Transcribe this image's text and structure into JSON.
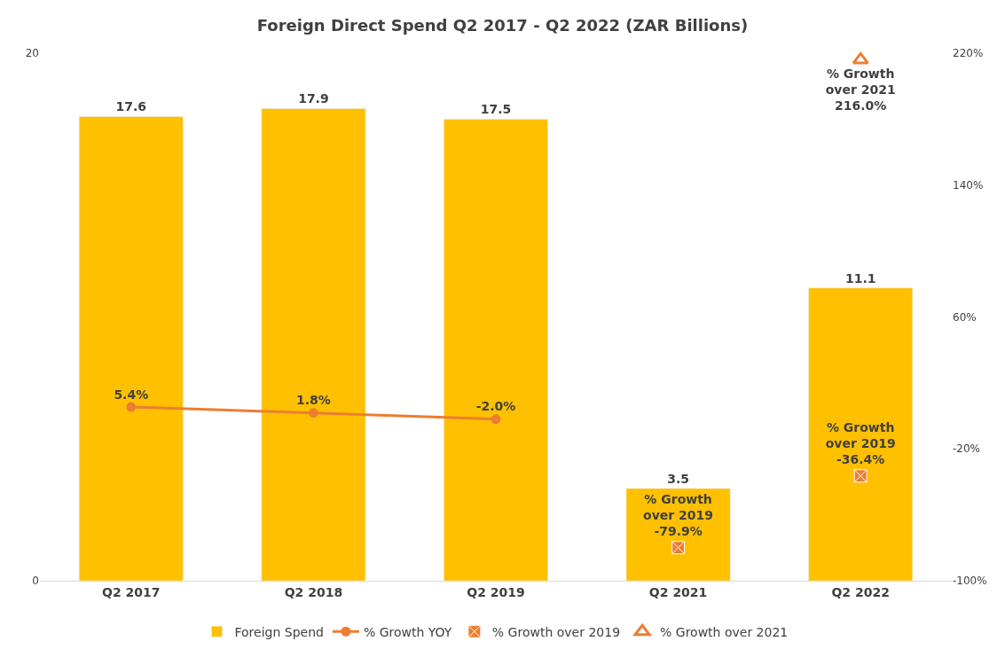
{
  "chart_data": {
    "type": "bar",
    "title": "Foreign Direct Spend Q2 2017 - Q2 2022 (ZAR Billions)",
    "categories": [
      "Q2 2017",
      "Q2 2018",
      "Q2 2019",
      "Q2 2021",
      "Q2 2022"
    ],
    "series": [
      {
        "name": "Foreign Spend",
        "color": "#ffc000",
        "values": [
          17.6,
          17.9,
          17.5,
          3.5,
          11.1
        ],
        "value_labels": [
          "17.6",
          "17.9",
          "17.5",
          "3.5",
          "11.1"
        ]
      },
      {
        "name": "% Growth YOY",
        "type": "line",
        "axis": "y2",
        "marker": "circle",
        "line_style": "solid",
        "color": "#ed7d31",
        "values": [
          5.4,
          1.8,
          -2.0,
          null,
          null
        ],
        "value_labels": [
          "5.4%",
          "1.8%",
          "-2.0%",
          null,
          null
        ]
      },
      {
        "name": "% Growth over 2019",
        "type": "scatter",
        "axis": "y2",
        "marker": "cross",
        "color": "#ed7d31",
        "values": [
          null,
          null,
          null,
          -79.9,
          -36.4
        ],
        "value_labels": [
          null,
          null,
          null,
          "% Growth\nover 2019\n-79.9%",
          "% Growth\nover 2019\n-36.4%"
        ]
      },
      {
        "name": "% Growth over 2021",
        "type": "scatter",
        "axis": "y2",
        "marker": "triangle",
        "color": "#ed7d31",
        "values": [
          null,
          null,
          null,
          null,
          216.0
        ],
        "value_labels": [
          null,
          null,
          null,
          null,
          "% Growth\nover 2021\n216.0%"
        ]
      }
    ],
    "ylim": [
      0,
      20
    ],
    "yticks": [
      0,
      20
    ],
    "y2lim": [
      -100,
      220
    ],
    "y2ticks": [
      {
        "value": -100,
        "label": "-100%"
      },
      {
        "value": -20,
        "label": "-20%"
      },
      {
        "value": 60,
        "label": "60%"
      },
      {
        "value": 140,
        "label": "140%"
      },
      {
        "value": 220,
        "label": "220%"
      }
    ],
    "legend": "bottom"
  }
}
